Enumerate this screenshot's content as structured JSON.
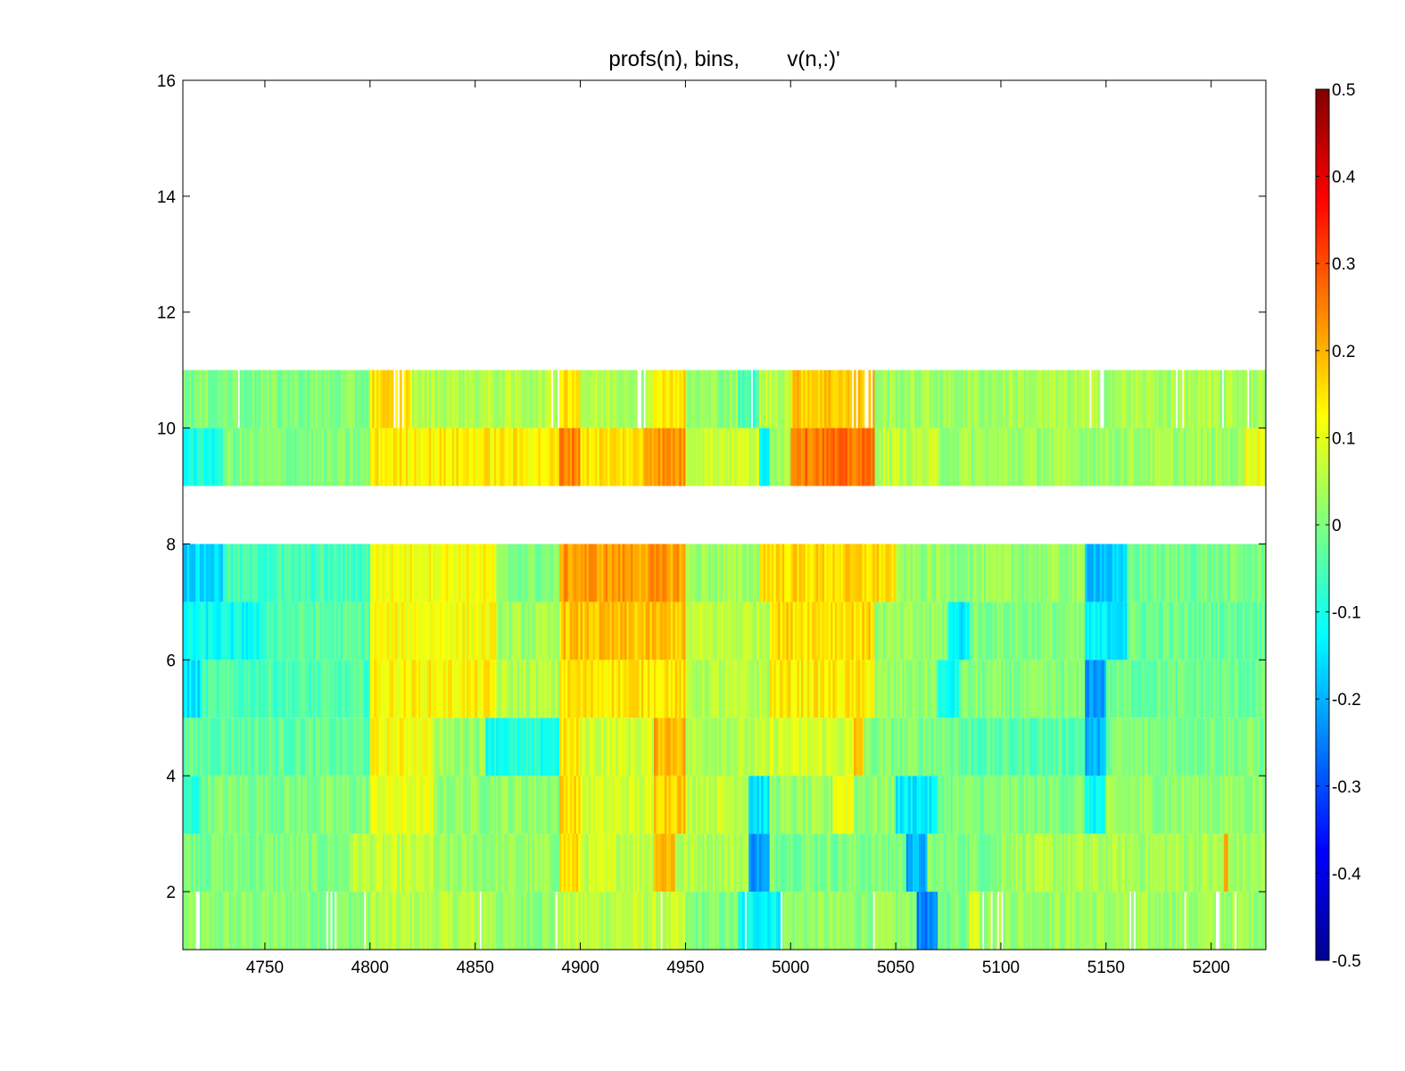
{
  "chart_data": {
    "type": "heatmap",
    "title": "profs(n), bins,        v(n,:)'",
    "xlabel": "",
    "ylabel": "",
    "xlim": [
      4711,
      5226
    ],
    "ylim": [
      1,
      16
    ],
    "xticks": [
      4750,
      4800,
      4850,
      4900,
      4950,
      5000,
      5050,
      5100,
      5150,
      5200
    ],
    "yticks": [
      2,
      4,
      6,
      8,
      10,
      12,
      14,
      16
    ],
    "colormap": "jet",
    "clim": [
      -0.5,
      0.5
    ],
    "colorbar_ticks": [
      0.5,
      0.4,
      0.3,
      0.2,
      0.1,
      0,
      -0.1,
      -0.2,
      -0.3,
      -0.4,
      -0.5
    ],
    "bins": [
      {
        "y0": 1,
        "y1": 2,
        "base": 0.02,
        "segments": [
          [
            4711,
            4800,
            0.01
          ],
          [
            4800,
            4860,
            0.05
          ],
          [
            4860,
            4890,
            0.02
          ],
          [
            4890,
            4950,
            0.06
          ],
          [
            4950,
            4975,
            0.0
          ],
          [
            4975,
            4995,
            -0.12
          ],
          [
            4995,
            5060,
            0.02
          ],
          [
            5060,
            5070,
            -0.25
          ],
          [
            5070,
            5085,
            0.0
          ],
          [
            5085,
            5090,
            0.12
          ],
          [
            5090,
            5226,
            0.03
          ]
        ]
      },
      {
        "y0": 2,
        "y1": 3,
        "base": 0.01,
        "segments": [
          [
            4711,
            4790,
            0.0
          ],
          [
            4790,
            4830,
            0.06
          ],
          [
            4830,
            4890,
            0.02
          ],
          [
            4890,
            4900,
            0.15
          ],
          [
            4900,
            4935,
            0.07
          ],
          [
            4935,
            4945,
            0.2
          ],
          [
            4945,
            4980,
            0.05
          ],
          [
            4980,
            4990,
            -0.22
          ],
          [
            4990,
            5055,
            0.0
          ],
          [
            5055,
            5065,
            -0.2
          ],
          [
            5065,
            5100,
            0.0
          ],
          [
            5100,
            5206,
            0.04
          ],
          [
            5206,
            5208,
            0.2
          ],
          [
            5208,
            5226,
            0.03
          ]
        ]
      },
      {
        "y0": 3,
        "y1": 4,
        "base": 0.01,
        "segments": [
          [
            4711,
            4720,
            -0.08
          ],
          [
            4720,
            4800,
            0.0
          ],
          [
            4800,
            4830,
            0.1
          ],
          [
            4830,
            4890,
            0.02
          ],
          [
            4890,
            4900,
            0.16
          ],
          [
            4900,
            4935,
            0.08
          ],
          [
            4935,
            4950,
            0.18
          ],
          [
            4950,
            4980,
            0.07
          ],
          [
            4980,
            4990,
            -0.15
          ],
          [
            4990,
            5020,
            0.02
          ],
          [
            5020,
            5030,
            0.12
          ],
          [
            5030,
            5050,
            0.02
          ],
          [
            5050,
            5070,
            -0.14
          ],
          [
            5070,
            5140,
            0.0
          ],
          [
            5140,
            5150,
            -0.12
          ],
          [
            5150,
            5226,
            0.02
          ]
        ]
      },
      {
        "y0": 4,
        "y1": 5,
        "base": 0.0,
        "segments": [
          [
            4711,
            4800,
            -0.03
          ],
          [
            4800,
            4830,
            0.12
          ],
          [
            4830,
            4855,
            0.03
          ],
          [
            4855,
            4890,
            -0.1
          ],
          [
            4890,
            4900,
            0.14
          ],
          [
            4900,
            4935,
            0.08
          ],
          [
            4935,
            4950,
            0.2
          ],
          [
            4950,
            4990,
            0.05
          ],
          [
            4990,
            5030,
            0.08
          ],
          [
            5030,
            5035,
            0.18
          ],
          [
            5035,
            5080,
            0.0
          ],
          [
            5080,
            5140,
            -0.04
          ],
          [
            5140,
            5150,
            -0.2
          ],
          [
            5150,
            5226,
            0.0
          ]
        ]
      },
      {
        "y0": 5,
        "y1": 6,
        "base": 0.0,
        "segments": [
          [
            4711,
            4720,
            -0.15
          ],
          [
            4720,
            4800,
            -0.05
          ],
          [
            4800,
            4860,
            0.13
          ],
          [
            4860,
            4890,
            0.05
          ],
          [
            4890,
            4950,
            0.15
          ],
          [
            4950,
            4990,
            0.05
          ],
          [
            4990,
            5040,
            0.14
          ],
          [
            5040,
            5070,
            0.02
          ],
          [
            5070,
            5080,
            -0.12
          ],
          [
            5080,
            5140,
            0.0
          ],
          [
            5140,
            5150,
            -0.22
          ],
          [
            5150,
            5226,
            -0.02
          ]
        ]
      },
      {
        "y0": 6,
        "y1": 7,
        "base": 0.0,
        "segments": [
          [
            4711,
            4750,
            -0.12
          ],
          [
            4750,
            4800,
            -0.04
          ],
          [
            4800,
            4860,
            0.12
          ],
          [
            4860,
            4890,
            0.03
          ],
          [
            4890,
            4950,
            0.18
          ],
          [
            4950,
            4990,
            0.06
          ],
          [
            4990,
            5040,
            0.16
          ],
          [
            5040,
            5075,
            0.02
          ],
          [
            5075,
            5085,
            -0.14
          ],
          [
            5085,
            5140,
            0.0
          ],
          [
            5140,
            5160,
            -0.14
          ],
          [
            5160,
            5226,
            -0.02
          ]
        ]
      },
      {
        "y0": 7,
        "y1": 8,
        "base": 0.0,
        "segments": [
          [
            4711,
            4730,
            -0.16
          ],
          [
            4730,
            4800,
            -0.06
          ],
          [
            4800,
            4860,
            0.12
          ],
          [
            4860,
            4890,
            0.0
          ],
          [
            4890,
            4950,
            0.22
          ],
          [
            4950,
            4985,
            0.03
          ],
          [
            4985,
            5050,
            0.16
          ],
          [
            5050,
            5140,
            0.02
          ],
          [
            5140,
            5160,
            -0.18
          ],
          [
            5160,
            5226,
            -0.01
          ]
        ]
      },
      {
        "y0": 9,
        "y1": 10,
        "base": 0.03,
        "segments": [
          [
            4711,
            4730,
            -0.1
          ],
          [
            4730,
            4800,
            0.0
          ],
          [
            4800,
            4890,
            0.14
          ],
          [
            4890,
            4900,
            0.25
          ],
          [
            4900,
            4930,
            0.15
          ],
          [
            4930,
            4950,
            0.23
          ],
          [
            4950,
            4985,
            0.08
          ],
          [
            4985,
            4990,
            -0.15
          ],
          [
            4990,
            5000,
            0.05
          ],
          [
            5000,
            5040,
            0.26
          ],
          [
            5040,
            5070,
            0.06
          ],
          [
            5070,
            5226,
            0.03
          ],
          [
            5216,
            5226,
            0.12
          ]
        ]
      },
      {
        "y0": 10,
        "y1": 11,
        "base": 0.02,
        "segments": [
          [
            4711,
            4800,
            0.0
          ],
          [
            4800,
            4820,
            0.15
          ],
          [
            4820,
            4890,
            0.05
          ],
          [
            4890,
            4900,
            0.16
          ],
          [
            4900,
            4935,
            0.05
          ],
          [
            4935,
            4950,
            0.15
          ],
          [
            4950,
            4975,
            0.02
          ],
          [
            4975,
            4985,
            -0.06
          ],
          [
            4985,
            5000,
            0.06
          ],
          [
            5000,
            5040,
            0.18
          ],
          [
            5040,
            5100,
            0.03
          ],
          [
            5100,
            5226,
            0.04
          ]
        ]
      }
    ],
    "gaps": [
      {
        "y0": 1,
        "y1": 2,
        "x": [
          4717,
          4718,
          4779,
          4781,
          4783,
          4797,
          4852,
          4888,
          4938,
          4978,
          4995,
          5039,
          5091,
          5095,
          5098,
          5100,
          5161,
          5163,
          5187,
          5202,
          5203,
          5211
        ]
      },
      {
        "y0": 10,
        "y1": 11,
        "x": [
          4737,
          4811,
          4813,
          4815,
          4886,
          4889,
          4927,
          4928,
          4930,
          4981,
          5029,
          5031,
          5035,
          5036,
          5038,
          5142,
          5147,
          5148,
          5183,
          5186,
          5205,
          5217
        ]
      }
    ]
  }
}
